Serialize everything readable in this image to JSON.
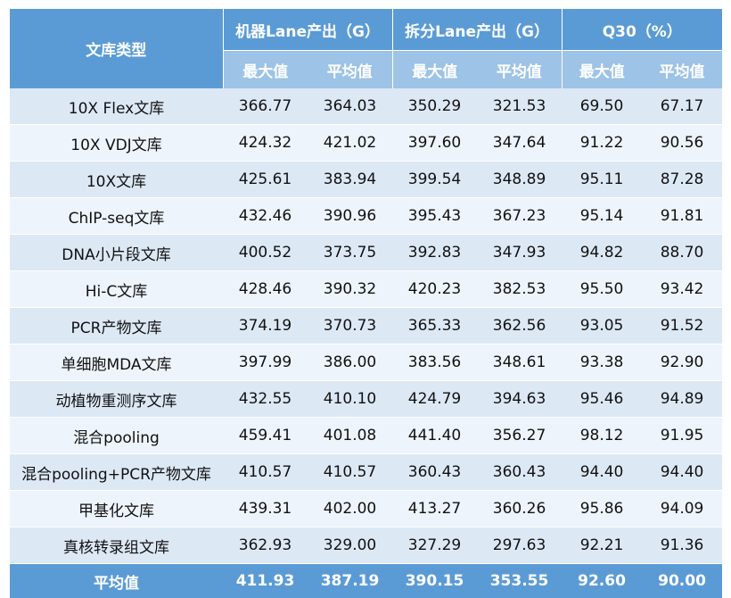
{
  "table": {
    "header_type": "文库类型",
    "groups": [
      "机器Lane产出（G）",
      "拆分Lane产出（G）",
      "Q30（%）"
    ],
    "subheaders": [
      "最大值",
      "平均值",
      "最大值",
      "平均值",
      "最大值",
      "平均值"
    ],
    "rows": [
      [
        "10X Flex文库",
        "366.77",
        "364.03",
        "350.29",
        "321.53",
        "69.50",
        "67.17"
      ],
      [
        "10X VDJ文库",
        "424.32",
        "421.02",
        "397.60",
        "347.64",
        "91.22",
        "90.56"
      ],
      [
        "10X文库",
        "425.61",
        "383.94",
        "399.54",
        "348.89",
        "95.11",
        "87.28"
      ],
      [
        "ChIP-seq文库",
        "432.46",
        "390.96",
        "395.43",
        "367.23",
        "95.14",
        "91.81"
      ],
      [
        "DNA小片段文库",
        "400.52",
        "373.75",
        "392.83",
        "347.93",
        "94.82",
        "88.70"
      ],
      [
        "Hi-C文库",
        "428.46",
        "390.32",
        "420.23",
        "382.53",
        "95.50",
        "93.42"
      ],
      [
        "PCR产物文库",
        "374.19",
        "370.73",
        "365.33",
        "362.56",
        "93.05",
        "91.52"
      ],
      [
        "单细胞MDA文库",
        "397.99",
        "386.00",
        "383.56",
        "348.61",
        "93.38",
        "92.90"
      ],
      [
        "动植物重测序文库",
        "432.55",
        "410.10",
        "424.79",
        "394.63",
        "95.46",
        "94.89"
      ],
      [
        "混合pooling",
        "459.41",
        "401.08",
        "441.40",
        "356.27",
        "98.12",
        "91.95"
      ],
      [
        "混合pooling+PCR产物文库",
        "410.57",
        "410.57",
        "360.43",
        "360.43",
        "94.40",
        "94.40"
      ],
      [
        "甲基化文库",
        "439.31",
        "402.00",
        "413.27",
        "360.26",
        "95.86",
        "94.09"
      ],
      [
        "真核转录组文库",
        "362.93",
        "329.00",
        "327.29",
        "297.63",
        "92.21",
        "91.36"
      ]
    ],
    "footer": [
      "平均值",
      "411.93",
      "387.19",
      "390.15",
      "353.55",
      "92.60",
      "90.00"
    ]
  }
}
